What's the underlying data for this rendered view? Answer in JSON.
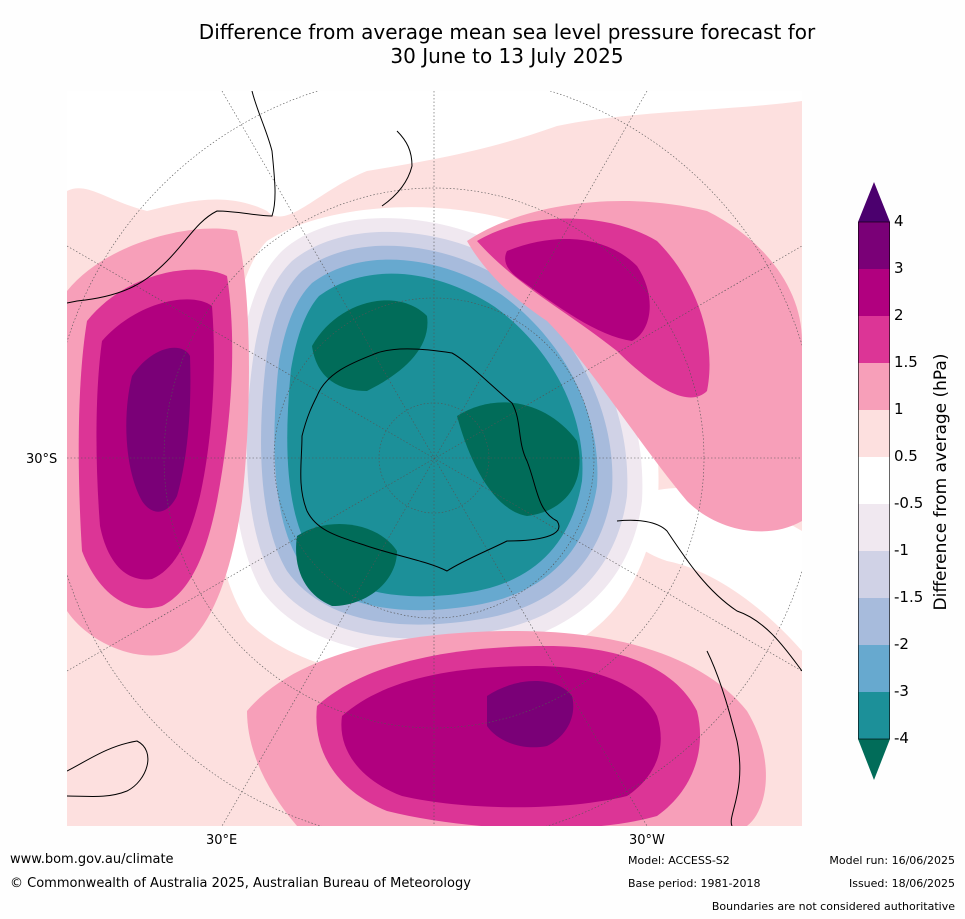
{
  "title": {
    "line1": "Difference from average mean sea level pressure forecast for",
    "line2": "30 June to 13 July 2025"
  },
  "map": {
    "projection": "south-polar stereographic",
    "lat_label": "30°S",
    "lon_labels": {
      "east": "30°E",
      "west": "30°W"
    },
    "regions": [
      {
        "name": "Antarctica",
        "anomaly_class": "-4 to -3"
      },
      {
        "name": "Southern Indian Ocean / south of Africa",
        "anomaly_class": "3 to 4"
      },
      {
        "name": "South Pacific",
        "anomaly_class": "2 to 3"
      },
      {
        "name": "Tasman Sea / south of Australia",
        "anomaly_class": "3 to 4"
      }
    ]
  },
  "colorbar": {
    "title": "Difference from average (hPa)",
    "ticks": [
      "4",
      "3",
      "2",
      "1.5",
      "1",
      "0.5",
      "-0.5",
      "-1",
      "-1.5",
      "-2",
      "-3",
      "-4"
    ],
    "colors": [
      "#4b006e",
      "#7a0077",
      "#b1007f",
      "#dc3596",
      "#f79fb9",
      "#fde0df",
      "#ffffff",
      "#f0e8f0",
      "#d0d2e6",
      "#a7bbdc",
      "#67a9cf",
      "#1c9099",
      "#016c59"
    ]
  },
  "footer": {
    "website": "www.bom.gov.au/climate",
    "copyright": "© Commonwealth of Australia 2025, Australian Bureau of Meteorology",
    "model": "Model: ACCESS-S2",
    "base_period": "Base period: 1981-2018",
    "model_run": "Model run: 16/06/2025",
    "issued": "Issued: 18/06/2025",
    "disclaimer": "Boundaries are not considered authoritative"
  }
}
